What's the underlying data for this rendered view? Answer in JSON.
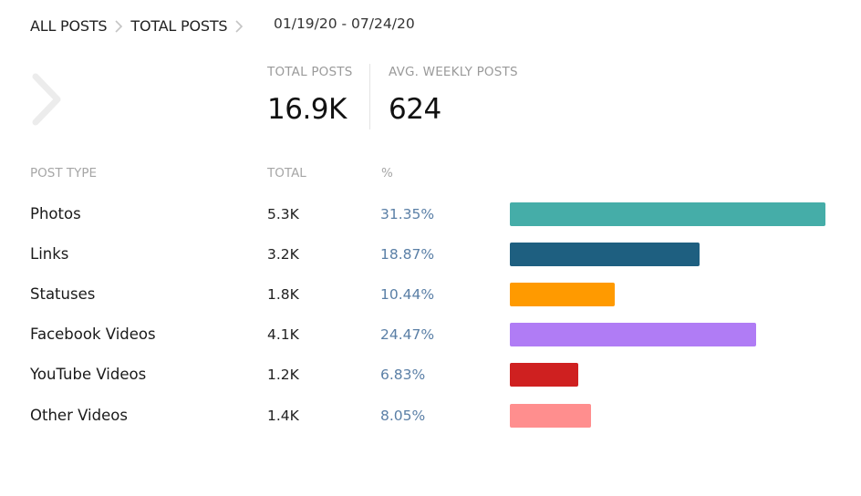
{
  "breadcrumb": {
    "items": [
      "ALL POSTS",
      "TOTAL POSTS"
    ],
    "date_range": "01/19/20 - 07/24/20"
  },
  "stats": {
    "total_posts": {
      "label": "TOTAL POSTS",
      "value": "16.9K"
    },
    "avg_weekly": {
      "label": "AVG. WEEKLY POSTS",
      "value": "624"
    }
  },
  "table": {
    "headers": [
      "POST TYPE",
      "TOTAL",
      "%"
    ],
    "rows": [
      {
        "type": "Photos",
        "total": "5.3K",
        "pct": "31.35%",
        "value": 31.35,
        "color": "#45ada8"
      },
      {
        "type": "Links",
        "total": "3.2K",
        "pct": "18.87%",
        "value": 18.87,
        "color": "#1e5f80"
      },
      {
        "type": "Statuses",
        "total": "1.8K",
        "pct": "10.44%",
        "value": 10.44,
        "color": "#ff9a00"
      },
      {
        "type": "Facebook Videos",
        "total": "4.1K",
        "pct": "24.47%",
        "value": 24.47,
        "color": "#b07cf5"
      },
      {
        "type": "YouTube Videos",
        "total": "1.2K",
        "pct": "6.83%",
        "value": 6.83,
        "color": "#cf2020"
      },
      {
        "type": "Other Videos",
        "total": "1.4K",
        "pct": "8.05%",
        "value": 8.05,
        "color": "#ff8e8e"
      }
    ]
  }
}
